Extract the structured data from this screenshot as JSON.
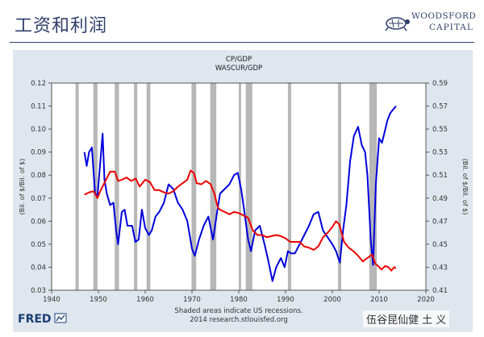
{
  "slide": {
    "title": "工资和利润",
    "logo_line1": "WOODSFORD",
    "logo_line2": "CAPITAL",
    "logo_icon": "turtle-icon"
  },
  "colors": {
    "title": "#2f3f6a",
    "panel_bg": "#dfe6ee",
    "plot_bg": "#ffffff",
    "recession": "#b7b7b7",
    "series_cp": "#0000dd",
    "series_wascur": "#ee0000",
    "fred_blue": "#1a3e75"
  },
  "chart_data": {
    "type": "line",
    "title_lines": [
      "CP/GDP",
      "WASCUR/GDP"
    ],
    "ylabel_left": "(Bil. of $/Bil. of $)",
    "ylabel_right": "(Bil. of $/Bil. of $)",
    "xlim": [
      1940,
      2020
    ],
    "x_ticks": [
      "1940",
      "1950",
      "1960",
      "1970",
      "1980",
      "1990",
      "2000",
      "2010",
      "2020"
    ],
    "ylim_left": [
      0.03,
      0.12
    ],
    "y_ticks_left": [
      "0.03",
      "0.04",
      "0.05",
      "0.06",
      "0.07",
      "0.08",
      "0.09",
      "0.10",
      "0.11",
      "0.12"
    ],
    "ylim_right": [
      0.41,
      0.59
    ],
    "y_ticks_right": [
      "0.41",
      "0.43",
      "0.45",
      "0.47",
      "0.49",
      "0.51",
      "0.53",
      "0.55",
      "0.57",
      "0.59"
    ],
    "recessions": [
      [
        1945.1,
        1945.8
      ],
      [
        1948.9,
        1949.8
      ],
      [
        1953.5,
        1954.4
      ],
      [
        1957.6,
        1958.3
      ],
      [
        1960.3,
        1961.1
      ],
      [
        1969.9,
        1970.9
      ],
      [
        1973.9,
        1975.2
      ],
      [
        1980.0,
        1980.5
      ],
      [
        1981.5,
        1982.9
      ],
      [
        1990.5,
        1991.2
      ],
      [
        2001.2,
        2001.9
      ],
      [
        2007.9,
        2009.5
      ]
    ],
    "series": [
      {
        "axis": "left",
        "color": "#0000dd",
        "points": [
          [
            1947,
            0.09
          ],
          [
            1947.5,
            0.084
          ],
          [
            1948,
            0.09
          ],
          [
            1948.6,
            0.092
          ],
          [
            1949.3,
            0.072
          ],
          [
            1949.8,
            0.071
          ],
          [
            1950.5,
            0.088
          ],
          [
            1950.9,
            0.098
          ],
          [
            1951.3,
            0.078
          ],
          [
            1951.8,
            0.072
          ],
          [
            1952.5,
            0.067
          ],
          [
            1953.2,
            0.068
          ],
          [
            1953.8,
            0.056
          ],
          [
            1954.2,
            0.05
          ],
          [
            1955,
            0.064
          ],
          [
            1955.6,
            0.065
          ],
          [
            1956.2,
            0.058
          ],
          [
            1957.2,
            0.058
          ],
          [
            1957.9,
            0.051
          ],
          [
            1958.6,
            0.052
          ],
          [
            1959.3,
            0.065
          ],
          [
            1960,
            0.057
          ],
          [
            1960.8,
            0.054
          ],
          [
            1961.4,
            0.056
          ],
          [
            1962.2,
            0.062
          ],
          [
            1963,
            0.064
          ],
          [
            1964,
            0.068
          ],
          [
            1965,
            0.076
          ],
          [
            1966,
            0.074
          ],
          [
            1967,
            0.068
          ],
          [
            1968,
            0.065
          ],
          [
            1969,
            0.06
          ],
          [
            1970,
            0.048
          ],
          [
            1970.6,
            0.045
          ],
          [
            1971.5,
            0.052
          ],
          [
            1972.5,
            0.058
          ],
          [
            1973.5,
            0.062
          ],
          [
            1974.5,
            0.052
          ],
          [
            1975.3,
            0.063
          ],
          [
            1976,
            0.072
          ],
          [
            1977,
            0.074
          ],
          [
            1978,
            0.076
          ],
          [
            1979,
            0.08
          ],
          [
            1979.8,
            0.081
          ],
          [
            1980.5,
            0.074
          ],
          [
            1981,
            0.067
          ],
          [
            1982,
            0.052
          ],
          [
            1982.6,
            0.047
          ],
          [
            1983.5,
            0.056
          ],
          [
            1984.5,
            0.058
          ],
          [
            1985.5,
            0.05
          ],
          [
            1986.3,
            0.043
          ],
          [
            1986.8,
            0.038
          ],
          [
            1987.2,
            0.034
          ],
          [
            1988,
            0.04
          ],
          [
            1989,
            0.044
          ],
          [
            1989.8,
            0.04
          ],
          [
            1990.5,
            0.047
          ],
          [
            1991.2,
            0.046
          ],
          [
            1992,
            0.046
          ],
          [
            1993,
            0.05
          ],
          [
            1994,
            0.054
          ],
          [
            1995,
            0.058
          ],
          [
            1996,
            0.063
          ],
          [
            1997,
            0.064
          ],
          [
            1998,
            0.056
          ],
          [
            1999,
            0.053
          ],
          [
            2000,
            0.05
          ],
          [
            2000.8,
            0.047
          ],
          [
            2001.6,
            0.042
          ],
          [
            2002.3,
            0.056
          ],
          [
            2003,
            0.067
          ],
          [
            2003.8,
            0.086
          ],
          [
            2004.6,
            0.097
          ],
          [
            2005.5,
            0.101
          ],
          [
            2006.3,
            0.093
          ],
          [
            2007,
            0.09
          ],
          [
            2007.5,
            0.08
          ],
          [
            2008.2,
            0.052
          ],
          [
            2008.7,
            0.041
          ],
          [
            2009.3,
            0.076
          ],
          [
            2010,
            0.096
          ],
          [
            2010.6,
            0.094
          ],
          [
            2011.2,
            0.099
          ],
          [
            2011.8,
            0.104
          ],
          [
            2012.4,
            0.107
          ],
          [
            2013.2,
            0.109
          ],
          [
            2013.6,
            0.11
          ]
        ]
      },
      {
        "axis": "right",
        "color": "#ee0000",
        "points": [
          [
            1947,
            0.493
          ],
          [
            1948,
            0.495
          ],
          [
            1949,
            0.496
          ],
          [
            1949.8,
            0.49
          ],
          [
            1950.5,
            0.497
          ],
          [
            1951.5,
            0.505
          ],
          [
            1952.5,
            0.513
          ],
          [
            1953.5,
            0.513
          ],
          [
            1954.2,
            0.505
          ],
          [
            1955,
            0.506
          ],
          [
            1956,
            0.508
          ],
          [
            1957,
            0.505
          ],
          [
            1958,
            0.507
          ],
          [
            1958.8,
            0.5
          ],
          [
            1960,
            0.506
          ],
          [
            1961,
            0.504
          ],
          [
            1962,
            0.497
          ],
          [
            1963,
            0.497
          ],
          [
            1964,
            0.495
          ],
          [
            1965,
            0.494
          ],
          [
            1966,
            0.496
          ],
          [
            1967,
            0.5
          ],
          [
            1968,
            0.503
          ],
          [
            1969,
            0.506
          ],
          [
            1969.7,
            0.514
          ],
          [
            1970.4,
            0.512
          ],
          [
            1971,
            0.503
          ],
          [
            1972,
            0.502
          ],
          [
            1973,
            0.505
          ],
          [
            1974,
            0.502
          ],
          [
            1974.8,
            0.494
          ],
          [
            1975.5,
            0.482
          ],
          [
            1976,
            0.48
          ],
          [
            1977,
            0.478
          ],
          [
            1978,
            0.476
          ],
          [
            1979,
            0.478
          ],
          [
            1980,
            0.477
          ],
          [
            1981,
            0.475
          ],
          [
            1982,
            0.473
          ],
          [
            1983,
            0.462
          ],
          [
            1984,
            0.458
          ],
          [
            1985,
            0.458
          ],
          [
            1986,
            0.456
          ],
          [
            1987,
            0.457
          ],
          [
            1988,
            0.458
          ],
          [
            1989,
            0.457
          ],
          [
            1990,
            0.455
          ],
          [
            1991,
            0.452
          ],
          [
            1992,
            0.452
          ],
          [
            1993,
            0.452
          ],
          [
            1994,
            0.448
          ],
          [
            1995,
            0.447
          ],
          [
            1996,
            0.445
          ],
          [
            1997,
            0.448
          ],
          [
            1998,
            0.456
          ],
          [
            1999,
            0.46
          ],
          [
            2000,
            0.465
          ],
          [
            2000.8,
            0.47
          ],
          [
            2001.5,
            0.467
          ],
          [
            2002.5,
            0.452
          ],
          [
            2003.5,
            0.447
          ],
          [
            2004.5,
            0.444
          ],
          [
            2005.5,
            0.44
          ],
          [
            2006.5,
            0.435
          ],
          [
            2007.5,
            0.438
          ],
          [
            2008.5,
            0.441
          ],
          [
            2009.2,
            0.433
          ],
          [
            2009.8,
            0.431
          ],
          [
            2010.5,
            0.428
          ],
          [
            2011.3,
            0.431
          ],
          [
            2012,
            0.43
          ],
          [
            2012.6,
            0.427
          ],
          [
            2013.2,
            0.43
          ],
          [
            2013.6,
            0.429
          ]
        ]
      }
    ],
    "footer_line1": "Shaded areas indicate US recessions.",
    "footer_line2": "2014 research.stlouisfed.org",
    "brand": "FRED"
  },
  "watermark": "伍谷昆仙健 土 义"
}
